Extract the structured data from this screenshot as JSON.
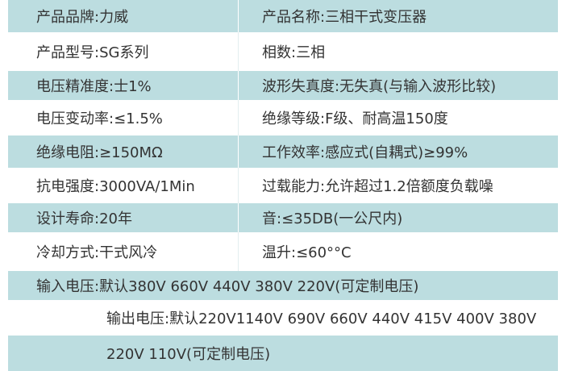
{
  "table": {
    "rows": [
      [
        "产品品牌:力威",
        "产品名称:三相干式变压器"
      ],
      [
        "产品型号:SG系列",
        "相数:三相"
      ],
      [
        "电压精准度:士1%",
        "波形失真度:无失真(与输入波形比较)"
      ],
      [
        "电压变动率:≤1.5%",
        "绝缘等级:F级、耐高温150度"
      ],
      [
        "绝缘电阻:≥150MΩ",
        "工作效率:感应式(自耦式)≥99%"
      ],
      [
        "抗电强度:3000VA/1Min",
        "过载能力:允许超过1.2倍额度负载噪"
      ],
      [
        "设计寿命:20年",
        "音:≤35DB(一公尺内)"
      ],
      [
        "冷却方式:干式风冷",
        "温升:≤60°°C"
      ],
      [
        "输入电压:默认380V 660V 440V 380V 220V(可定制电压)"
      ],
      [
        "输出电压:默认220V1140V 690V 660V 440V 415V 400V 380V"
      ],
      [
        "220V 110V(可定制电压)"
      ]
    ]
  }
}
